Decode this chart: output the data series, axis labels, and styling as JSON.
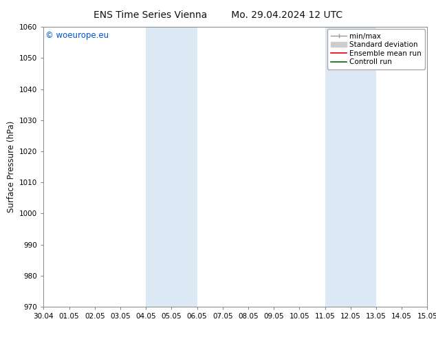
{
  "title_left": "ENS Time Series Vienna",
  "title_right": "Mo. 29.04.2024 12 UTC",
  "ylabel": "Surface Pressure (hPa)",
  "ylim": [
    970,
    1060
  ],
  "yticks": [
    970,
    980,
    990,
    1000,
    1010,
    1020,
    1030,
    1040,
    1050,
    1060
  ],
  "x_tick_labels": [
    "30.04",
    "01.05",
    "02.05",
    "03.05",
    "04.05",
    "05.05",
    "06.05",
    "07.05",
    "08.05",
    "09.05",
    "10.05",
    "11.05",
    "12.05",
    "13.05",
    "14.05",
    "15.05"
  ],
  "x_tick_positions": [
    0,
    1,
    2,
    3,
    4,
    5,
    6,
    7,
    8,
    9,
    10,
    11,
    12,
    13,
    14,
    15
  ],
  "shaded_regions": [
    {
      "xmin": 4.0,
      "xmax": 6.0,
      "color": "#dce9f5"
    },
    {
      "xmin": 11.0,
      "xmax": 13.0,
      "color": "#dce9f5"
    }
  ],
  "copyright_text": "© woeurope.eu",
  "copyright_color": "#0055cc",
  "bg_color": "#ffffff",
  "plot_bg_color": "#ffffff",
  "spine_color": "#888888",
  "tick_color": "#333333",
  "title_fontsize": 10,
  "ylabel_fontsize": 8.5,
  "tick_fontsize": 7.5,
  "copyright_fontsize": 8.5,
  "legend_fontsize": 7.5
}
